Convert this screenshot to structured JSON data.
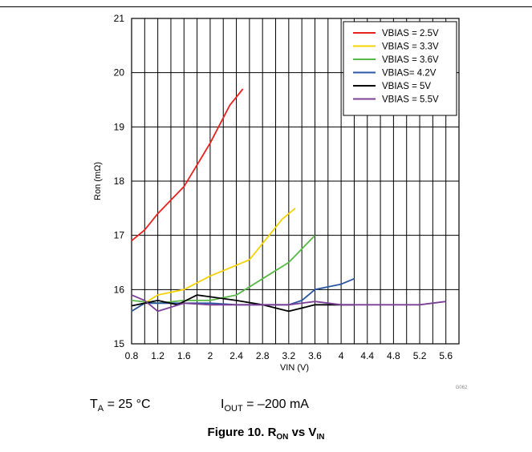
{
  "chart_data": {
    "type": "line",
    "title": "",
    "xlabel": "VIN (V)",
    "ylabel": "Ron (mΩ)",
    "xlim": [
      0.8,
      5.8
    ],
    "ylim": [
      15,
      21
    ],
    "xticks": [
      "0.8",
      "1.2",
      "1.6",
      "2",
      "2.4",
      "2.8",
      "3.2",
      "3.6",
      "4",
      "4.4",
      "4.8",
      "5.2",
      "5.6"
    ],
    "yticks": [
      "15",
      "16",
      "17",
      "18",
      "19",
      "20",
      "21"
    ],
    "grid": true,
    "legend_position": "top-right",
    "code": "G062",
    "series": [
      {
        "name": "VBIAS = 2.5V",
        "color": "#e8231f",
        "points": [
          [
            0.8,
            16.9
          ],
          [
            1.0,
            17.1
          ],
          [
            1.2,
            17.4
          ],
          [
            1.6,
            17.9
          ],
          [
            2.0,
            18.7
          ],
          [
            2.3,
            19.4
          ],
          [
            2.5,
            19.7
          ]
        ]
      },
      {
        "name": "VBIAS = 3.3V",
        "color": "#f5d300",
        "points": [
          [
            0.8,
            15.6
          ],
          [
            1.2,
            15.9
          ],
          [
            1.6,
            16.0
          ],
          [
            2.0,
            16.25
          ],
          [
            2.4,
            16.45
          ],
          [
            2.6,
            16.55
          ],
          [
            2.9,
            17.0
          ],
          [
            3.1,
            17.3
          ],
          [
            3.3,
            17.5
          ]
        ]
      },
      {
        "name": "VBIAS = 3.6V",
        "color": "#58b947",
        "points": [
          [
            0.8,
            15.8
          ],
          [
            1.2,
            15.75
          ],
          [
            1.6,
            15.8
          ],
          [
            2.0,
            15.8
          ],
          [
            2.4,
            15.9
          ],
          [
            2.8,
            16.2
          ],
          [
            3.2,
            16.5
          ],
          [
            3.6,
            17.0
          ]
        ]
      },
      {
        "name": "VBIAS= 4.2V",
        "color": "#2a56a5",
        "points": [
          [
            0.8,
            15.6
          ],
          [
            1.0,
            15.75
          ],
          [
            1.2,
            15.75
          ],
          [
            1.6,
            15.75
          ],
          [
            2.0,
            15.75
          ],
          [
            2.4,
            15.72
          ],
          [
            2.8,
            15.72
          ],
          [
            3.2,
            15.72
          ],
          [
            3.4,
            15.8
          ],
          [
            3.6,
            16.0
          ],
          [
            4.0,
            16.1
          ],
          [
            4.2,
            16.2
          ]
        ]
      },
      {
        "name": "VBIAS = 5V",
        "color": "#000000",
        "points": [
          [
            0.8,
            15.7
          ],
          [
            1.2,
            15.8
          ],
          [
            1.5,
            15.72
          ],
          [
            1.8,
            15.9
          ],
          [
            2.4,
            15.8
          ],
          [
            2.8,
            15.72
          ],
          [
            3.2,
            15.6
          ],
          [
            3.6,
            15.72
          ],
          [
            4.0,
            15.72
          ],
          [
            4.2,
            15.72
          ]
        ]
      },
      {
        "name": "VBIAS = 5.5V",
        "color": "#7b3f97",
        "points": [
          [
            0.8,
            15.9
          ],
          [
            1.0,
            15.8
          ],
          [
            1.2,
            15.6
          ],
          [
            1.6,
            15.75
          ],
          [
            2.0,
            15.72
          ],
          [
            2.4,
            15.72
          ],
          [
            2.8,
            15.72
          ],
          [
            3.2,
            15.72
          ],
          [
            3.6,
            15.78
          ],
          [
            4.0,
            15.72
          ],
          [
            4.4,
            15.72
          ],
          [
            4.8,
            15.72
          ],
          [
            5.2,
            15.72
          ],
          [
            5.6,
            15.78
          ]
        ]
      }
    ]
  },
  "conditions": {
    "ta_base": "T",
    "ta_sub": "A",
    "ta_rest": " = 25 °C",
    "iout_base": "I",
    "iout_sub": "OUT",
    "iout_rest": " = –200 mA"
  },
  "caption": {
    "prefix": "Figure 10. R",
    "sub1": "ON",
    "mid": " vs V",
    "sub2": "IN"
  }
}
